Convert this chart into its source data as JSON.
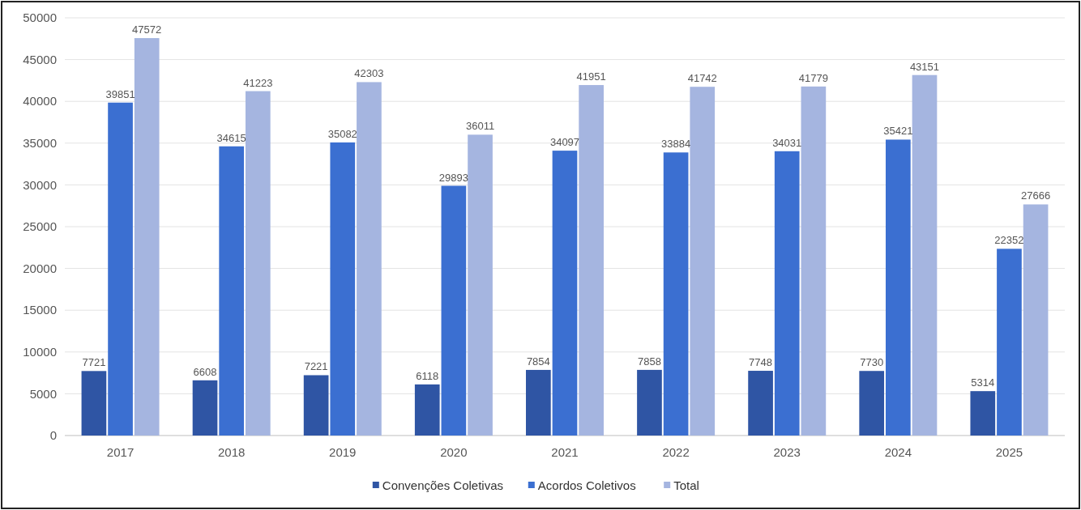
{
  "chart_data": {
    "type": "bar",
    "categories": [
      "2017",
      "2018",
      "2019",
      "2020",
      "2021",
      "2022",
      "2023",
      "2024",
      "2025"
    ],
    "series": [
      {
        "name": "Convenções Coletivas",
        "color": "#2f55a4",
        "values": [
          7721,
          6608,
          7221,
          6118,
          7854,
          7858,
          7748,
          7730,
          5314
        ]
      },
      {
        "name": "Acordos Coletivos",
        "color": "#3b6fd1",
        "values": [
          39851,
          34615,
          35082,
          29893,
          34097,
          33884,
          34031,
          35421,
          22352
        ]
      },
      {
        "name": "Total",
        "color": "#a5b5e0",
        "values": [
          47572,
          41223,
          42303,
          36011,
          41951,
          41742,
          41779,
          43151,
          27666
        ]
      }
    ],
    "ylim": [
      0,
      50000
    ],
    "yticks": [
      0,
      5000,
      10000,
      15000,
      20000,
      25000,
      30000,
      35000,
      40000,
      45000,
      50000
    ],
    "grid": "y",
    "legend": "bottom",
    "data_labels": true
  }
}
